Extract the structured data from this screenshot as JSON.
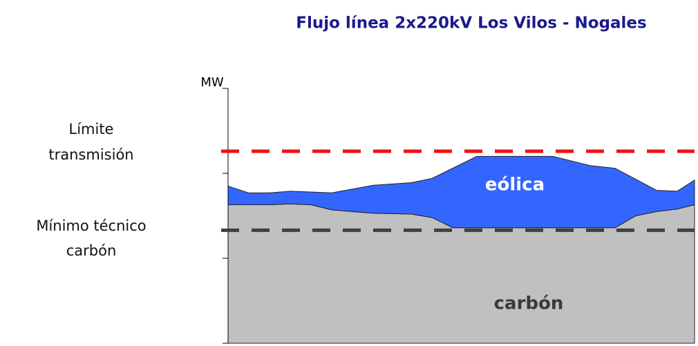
{
  "chart_data": {
    "type": "stacked_area",
    "title": "Flujo línea 2x220kV Los Vilos - Nogales",
    "y_label": "MW",
    "x": [
      0,
      30,
      60,
      90,
      120,
      150,
      210,
      265,
      295,
      325,
      360,
      415,
      470,
      525,
      560,
      590,
      620,
      650,
      675
    ],
    "xlim": [
      0,
      675
    ],
    "ylim": [
      0,
      3
    ],
    "yticks": [
      0,
      1,
      2,
      3
    ],
    "series": [
      {
        "name": "carbón",
        "color": "#c0c0c0",
        "values": [
          1.63,
          1.63,
          1.63,
          1.64,
          1.63,
          1.57,
          1.53,
          1.52,
          1.48,
          1.36,
          1.36,
          1.36,
          1.36,
          1.36,
          1.36,
          1.5,
          1.55,
          1.58,
          1.63
        ]
      },
      {
        "name": "eólica",
        "color": "#3366ff",
        "values": [
          0.22,
          0.14,
          0.14,
          0.15,
          0.15,
          0.2,
          0.33,
          0.37,
          0.46,
          0.7,
          0.84,
          0.84,
          0.84,
          0.73,
          0.7,
          0.43,
          0.25,
          0.21,
          0.29
        ]
      }
    ],
    "reference_lines": [
      {
        "label": [
          "Límite",
          "transmisión"
        ],
        "value": 2.26,
        "color": "#ee1111"
      },
      {
        "label": [
          "Mínimo técnico",
          "carbón"
        ],
        "value": 1.33,
        "color": "#404040"
      }
    ]
  }
}
